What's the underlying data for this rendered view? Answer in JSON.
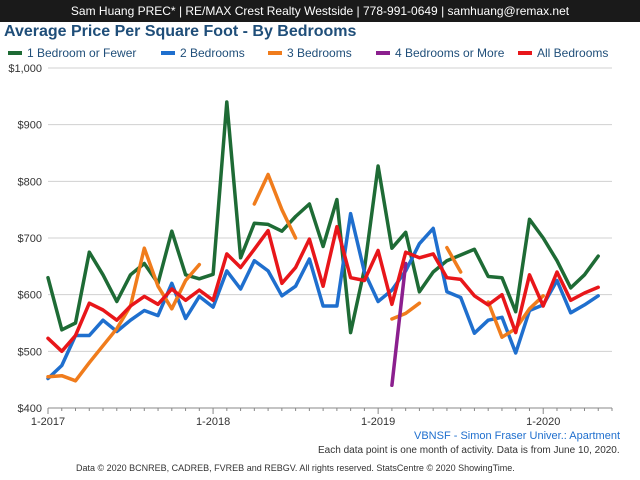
{
  "header": {
    "text": "Sam Huang PREC* | RE/MAX Crest Realty Westside | 778-991-0649 | samhuang@remax.net"
  },
  "footer": {
    "area_label": "VBNSF - Simon Fraser Univer.: Apartment",
    "note": "Each data point is one month of activity. Data is from June 10, 2020.",
    "copyright": "Data © 2020 BCNREB, CADREB, FVREB and REBGV. All rights reserved. StatsCentre © 2020 ShowingTime."
  },
  "chart_data": {
    "type": "line",
    "title": "Average Price Per Square Foot - By Bedrooms",
    "xlabel": "",
    "ylabel": "",
    "ylim": [
      400,
      1000
    ],
    "yticks": [
      400,
      500,
      600,
      700,
      800,
      900,
      1000
    ],
    "ytick_labels": [
      "$400",
      "$500",
      "$600",
      "$700",
      "$800",
      "$900",
      "$1,000"
    ],
    "xticks": [
      0,
      12,
      24,
      36
    ],
    "xtick_labels": [
      "1-2017",
      "1-2018",
      "1-2019",
      "1-2020"
    ],
    "x_months": [
      "1-2017",
      "2-2017",
      "3-2017",
      "4-2017",
      "5-2017",
      "6-2017",
      "7-2017",
      "8-2017",
      "9-2017",
      "10-2017",
      "11-2017",
      "12-2017",
      "1-2018",
      "2-2018",
      "3-2018",
      "4-2018",
      "5-2018",
      "6-2018",
      "7-2018",
      "8-2018",
      "9-2018",
      "10-2018",
      "11-2018",
      "12-2018",
      "1-2019",
      "2-2019",
      "3-2019",
      "4-2019",
      "5-2019",
      "6-2019",
      "7-2019",
      "8-2019",
      "9-2019",
      "10-2019",
      "11-2019",
      "12-2019",
      "1-2020",
      "2-2020",
      "3-2020",
      "4-2020",
      "5-2020"
    ],
    "legend_position": "top",
    "grid": true,
    "series": [
      {
        "name": "1 Bedroom or Fewer",
        "color": "#1e6b35",
        "values": [
          630,
          538,
          550,
          675,
          635,
          588,
          635,
          655,
          620,
          712,
          635,
          628,
          636,
          940,
          665,
          726,
          724,
          712,
          738,
          760,
          685,
          768,
          533,
          645,
          827,
          682,
          710,
          605,
          640,
          660,
          670,
          680,
          632,
          630,
          570,
          733,
          700,
          660,
          612,
          635,
          668
        ]
      },
      {
        "name": "2 Bedrooms",
        "color": "#1f6fce",
        "values": [
          452,
          475,
          528,
          528,
          555,
          535,
          555,
          572,
          563,
          620,
          558,
          597,
          578,
          642,
          610,
          660,
          642,
          598,
          615,
          663,
          580,
          580,
          743,
          640,
          588,
          608,
          642,
          690,
          717,
          605,
          595,
          532,
          555,
          560,
          497,
          572,
          582,
          625,
          568,
          582,
          598
        ]
      },
      {
        "name": "3 Bedrooms",
        "color": "#f07c1c",
        "values": [
          455,
          457,
          448,
          480,
          510,
          540,
          580,
          682,
          615,
          575,
          625,
          653,
          null,
          null,
          null,
          760,
          812,
          750,
          700,
          null,
          null,
          null,
          630,
          null,
          null,
          557,
          567,
          585,
          null,
          683,
          640,
          null,
          587,
          525,
          540,
          575,
          598,
          null,
          585,
          null,
          null
        ]
      },
      {
        "name": "4 Bedrooms or More",
        "color": "#8b1f8e",
        "values": [
          null,
          null,
          null,
          null,
          null,
          null,
          null,
          null,
          null,
          null,
          null,
          null,
          null,
          null,
          null,
          null,
          null,
          null,
          null,
          null,
          null,
          null,
          null,
          null,
          null,
          440,
          655,
          null,
          null,
          null,
          null,
          null,
          null,
          null,
          null,
          null,
          null,
          null,
          null,
          null,
          null
        ]
      },
      {
        "name": "All Bedrooms",
        "color": "#e8161a",
        "values": [
          523,
          500,
          528,
          585,
          573,
          555,
          580,
          597,
          583,
          610,
          590,
          608,
          590,
          672,
          648,
          680,
          713,
          620,
          648,
          698,
          615,
          720,
          630,
          625,
          678,
          583,
          675,
          665,
          672,
          630,
          627,
          598,
          582,
          600,
          533,
          635,
          580,
          640,
          590,
          603,
          613
        ]
      }
    ]
  }
}
